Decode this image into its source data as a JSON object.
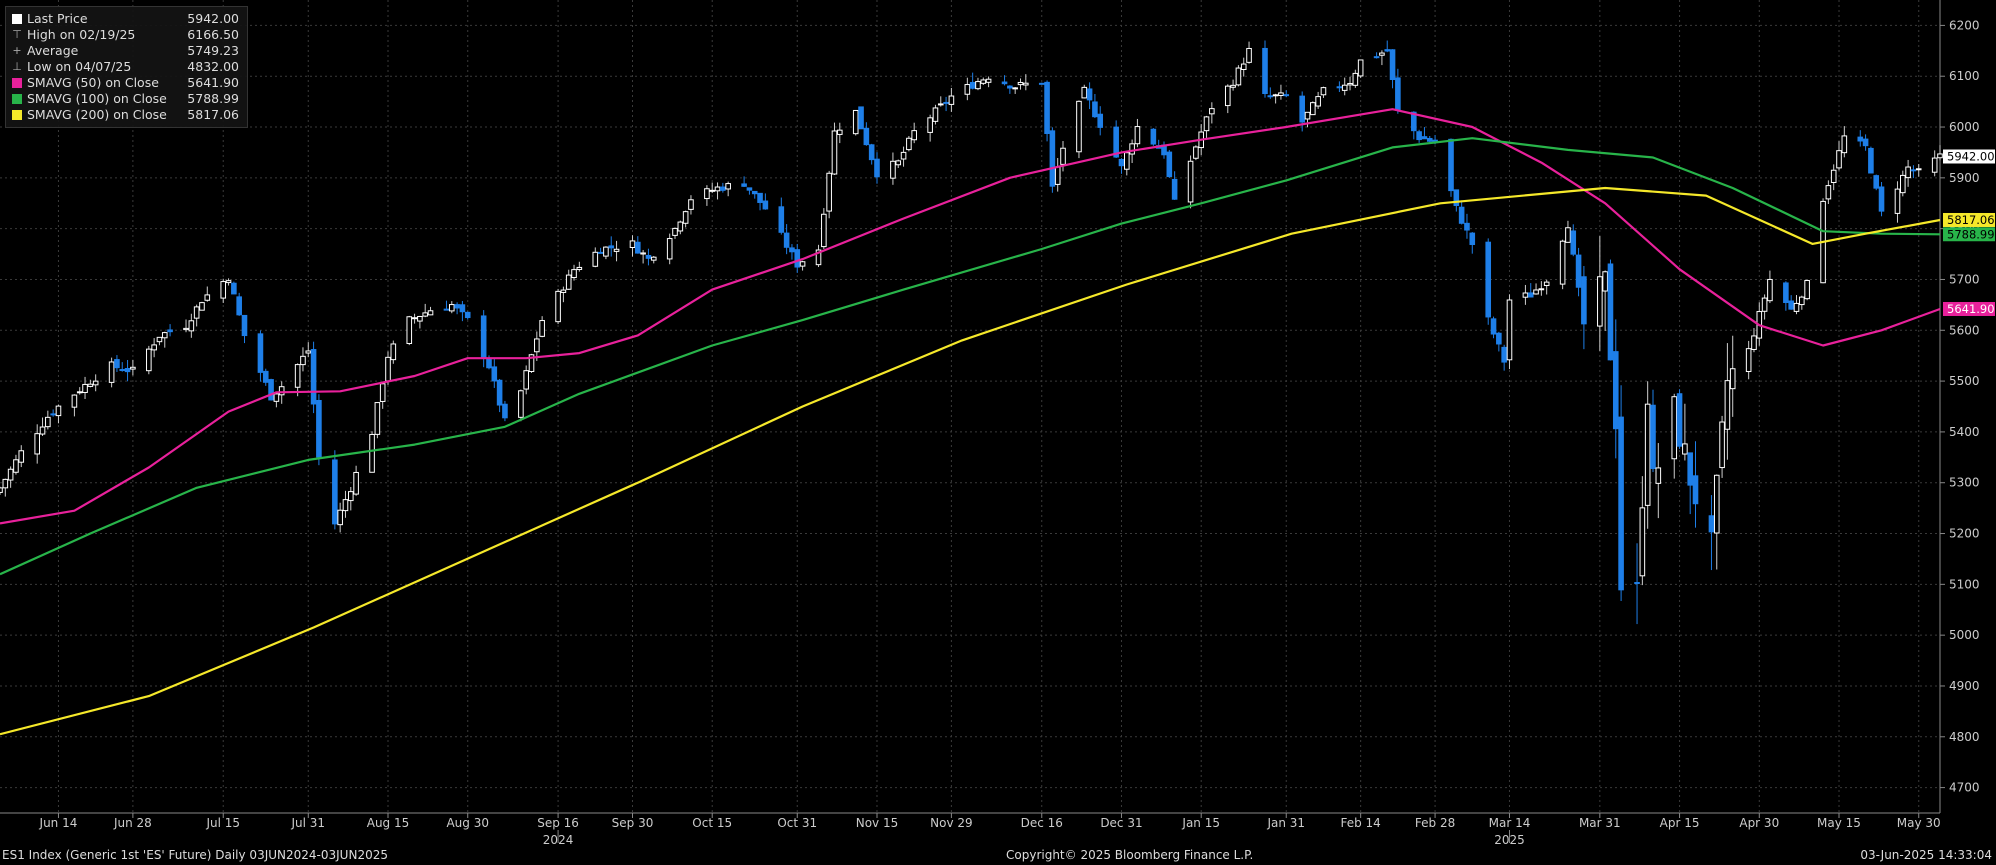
{
  "legend": [
    {
      "glyph": "square",
      "color": "#ffffff",
      "label": "Last Price",
      "value": "5942.00"
    },
    {
      "glyph": "high-icon",
      "label": "High on 02/19/25",
      "value": "6166.50"
    },
    {
      "glyph": "average-icon",
      "label": "Average",
      "value": "5749.23"
    },
    {
      "glyph": "low-icon",
      "label": "Low on 04/07/25",
      "value": "4832.00"
    },
    {
      "glyph": "square",
      "color": "#e8219b",
      "label": "SMAVG (50)  on Close",
      "value": "5641.90"
    },
    {
      "glyph": "square",
      "color": "#28b44a",
      "label": "SMAVG (100)  on Close",
      "value": "5788.99"
    },
    {
      "glyph": "square",
      "color": "#f5e82a",
      "label": "SMAVG (200)  on Close",
      "value": "5817.06"
    }
  ],
  "colors": {
    "background": "#000000",
    "grid": "#3a3a3a",
    "up_candle": "#ffffff",
    "down_candle": "#1e7fe8",
    "sma50": "#e8219b",
    "sma100": "#28b44a",
    "sma200": "#f5e82a"
  },
  "footer": {
    "left": "ES1 Index (Generic 1st 'ES' Future)  Daily 03JUN2024-03JUN2025",
    "center": "Copyright© 2025 Bloomberg Finance L.P.",
    "right": "03-Jun-2025 14:33:04"
  },
  "chart_data": {
    "type": "candlestick",
    "title": "",
    "xlabel": "",
    "ylabel": "",
    "ylim": [
      4650,
      6250
    ],
    "yticks": [
      4700,
      4800,
      4900,
      5000,
      5100,
      5200,
      5300,
      5400,
      5500,
      5600,
      5700,
      5800,
      5900,
      6000,
      6100,
      6200
    ],
    "x_axis": {
      "start": "2024-06-03",
      "end": "2025-06-03",
      "tick_labels": [
        {
          "date": "2024-06-14",
          "label": "Jun 14"
        },
        {
          "date": "2024-06-28",
          "label": "Jun 28"
        },
        {
          "date": "2024-07-15",
          "label": "Jul 15"
        },
        {
          "date": "2024-07-31",
          "label": "Jul 31"
        },
        {
          "date": "2024-08-15",
          "label": "Aug 15"
        },
        {
          "date": "2024-08-30",
          "label": "Aug 30"
        },
        {
          "date": "2024-09-16",
          "label": "Sep 16"
        },
        {
          "date": "2024-09-30",
          "label": "Sep 30"
        },
        {
          "date": "2024-10-15",
          "label": "Oct 15"
        },
        {
          "date": "2024-10-31",
          "label": "Oct 31"
        },
        {
          "date": "2024-11-15",
          "label": "Nov 15"
        },
        {
          "date": "2024-11-29",
          "label": "Nov 29"
        },
        {
          "date": "2024-12-16",
          "label": "Dec 16"
        },
        {
          "date": "2024-12-31",
          "label": "Dec 31"
        },
        {
          "date": "2025-01-15",
          "label": "Jan 15"
        },
        {
          "date": "2025-01-31",
          "label": "Jan 31"
        },
        {
          "date": "2025-02-14",
          "label": "Feb 14"
        },
        {
          "date": "2025-02-28",
          "label": "Feb 28"
        },
        {
          "date": "2025-03-14",
          "label": "Mar 14"
        },
        {
          "date": "2025-03-31",
          "label": "Mar 31"
        },
        {
          "date": "2025-04-15",
          "label": "Apr 15"
        },
        {
          "date": "2025-04-30",
          "label": "Apr 30"
        },
        {
          "date": "2025-05-15",
          "label": "May 15"
        },
        {
          "date": "2025-05-30",
          "label": "May 30"
        }
      ],
      "year_labels": [
        {
          "date": "2024-09-16",
          "label": "2024"
        },
        {
          "date": "2025-03-14",
          "label": "2025"
        }
      ]
    },
    "price_anchors": [
      [
        "2024-06-03",
        5290
      ],
      [
        "2024-06-07",
        5360
      ],
      [
        "2024-06-12",
        5430
      ],
      [
        "2024-06-14",
        5450
      ],
      [
        "2024-06-20",
        5500
      ],
      [
        "2024-06-24",
        5530
      ],
      [
        "2024-06-28",
        5520
      ],
      [
        "2024-07-03",
        5590
      ],
      [
        "2024-07-08",
        5610
      ],
      [
        "2024-07-11",
        5660
      ],
      [
        "2024-07-16",
        5705
      ],
      [
        "2024-07-19",
        5590
      ],
      [
        "2024-07-24",
        5470
      ],
      [
        "2024-07-26",
        5490
      ],
      [
        "2024-07-31",
        5560
      ],
      [
        "2024-08-02",
        5350
      ],
      [
        "2024-08-05",
        5220
      ],
      [
        "2024-08-08",
        5290
      ],
      [
        "2024-08-12",
        5400
      ],
      [
        "2024-08-15",
        5550
      ],
      [
        "2024-08-19",
        5620
      ],
      [
        "2024-08-23",
        5640
      ],
      [
        "2024-08-27",
        5650
      ],
      [
        "2024-08-30",
        5620
      ],
      [
        "2024-09-03",
        5530
      ],
      [
        "2024-09-06",
        5420
      ],
      [
        "2024-09-09",
        5480
      ],
      [
        "2024-09-13",
        5620
      ],
      [
        "2024-09-19",
        5720
      ],
      [
        "2024-09-24",
        5760
      ],
      [
        "2024-09-30",
        5770
      ],
      [
        "2024-10-03",
        5740
      ],
      [
        "2024-10-08",
        5800
      ],
      [
        "2024-10-11",
        5860
      ],
      [
        "2024-10-16",
        5880
      ],
      [
        "2024-10-21",
        5890
      ],
      [
        "2024-10-25",
        5840
      ],
      [
        "2024-10-31",
        5730
      ],
      [
        "2024-11-04",
        5760
      ],
      [
        "2024-11-07",
        5990
      ],
      [
        "2024-11-11",
        6030
      ],
      [
        "2024-11-15",
        5910
      ],
      [
        "2024-11-19",
        5930
      ],
      [
        "2024-11-22",
        5990
      ],
      [
        "2024-11-27",
        6040
      ],
      [
        "2024-11-29",
        6060
      ],
      [
        "2024-12-04",
        6090
      ],
      [
        "2024-12-06",
        6100
      ],
      [
        "2024-12-11",
        6080
      ],
      [
        "2024-12-16",
        6090
      ],
      [
        "2024-12-18",
        5880
      ],
      [
        "2024-12-20",
        5960
      ],
      [
        "2024-12-24",
        6070
      ],
      [
        "2024-12-31",
        5920
      ],
      [
        "2025-01-03",
        6000
      ],
      [
        "2025-01-08",
        5950
      ],
      [
        "2025-01-10",
        5850
      ],
      [
        "2025-01-15",
        5990
      ],
      [
        "2025-01-17",
        6040
      ],
      [
        "2025-01-21",
        6090
      ],
      [
        "2025-01-24",
        6150
      ],
      [
        "2025-01-27",
        6060
      ],
      [
        "2025-01-31",
        6060
      ],
      [
        "2025-02-03",
        6010
      ],
      [
        "2025-02-07",
        6070
      ],
      [
        "2025-02-12",
        6090
      ],
      [
        "2025-02-14",
        6130
      ],
      [
        "2025-02-19",
        6150
      ],
      [
        "2025-02-21",
        6030
      ],
      [
        "2025-02-25",
        5980
      ],
      [
        "2025-02-28",
        5970
      ],
      [
        "2025-03-04",
        5840
      ],
      [
        "2025-03-07",
        5770
      ],
      [
        "2025-03-10",
        5620
      ],
      [
        "2025-03-13",
        5540
      ],
      [
        "2025-03-14",
        5660
      ],
      [
        "2025-03-18",
        5670
      ],
      [
        "2025-03-21",
        5700
      ],
      [
        "2025-03-25",
        5810
      ],
      [
        "2025-03-28",
        5610
      ],
      [
        "2025-04-01",
        5690
      ],
      [
        "2025-04-03",
        5430
      ],
      [
        "2025-04-04",
        5100
      ],
      [
        "2025-04-07",
        5080
      ],
      [
        "2025-04-09",
        5480
      ],
      [
        "2025-04-10",
        5300
      ],
      [
        "2025-04-14",
        5440
      ],
      [
        "2025-04-17",
        5310
      ],
      [
        "2025-04-21",
        5170
      ],
      [
        "2025-04-24",
        5500
      ],
      [
        "2025-04-28",
        5560
      ],
      [
        "2025-05-02",
        5700
      ],
      [
        "2025-05-06",
        5640
      ],
      [
        "2025-05-09",
        5690
      ],
      [
        "2025-05-12",
        5860
      ],
      [
        "2025-05-16",
        5980
      ],
      [
        "2025-05-20",
        5960
      ],
      [
        "2025-05-23",
        5830
      ],
      [
        "2025-05-28",
        5920
      ],
      [
        "2025-05-30",
        5910
      ],
      [
        "2025-06-03",
        5942
      ]
    ],
    "series": [
      {
        "name": "SMAVG (50)  on Close",
        "color": "#e8219b",
        "anchors": [
          [
            "2024-06-03",
            5220
          ],
          [
            "2024-06-17",
            5245
          ],
          [
            "2024-07-01",
            5330
          ],
          [
            "2024-07-16",
            5440
          ],
          [
            "2024-07-25",
            5478
          ],
          [
            "2024-08-06",
            5480
          ],
          [
            "2024-08-20",
            5510
          ],
          [
            "2024-08-30",
            5545
          ],
          [
            "2024-09-10",
            5545
          ],
          [
            "2024-09-20",
            5555
          ],
          [
            "2024-10-01",
            5590
          ],
          [
            "2024-10-15",
            5680
          ],
          [
            "2024-11-01",
            5740
          ],
          [
            "2024-11-20",
            5820
          ],
          [
            "2024-12-10",
            5900
          ],
          [
            "2024-12-31",
            5950
          ],
          [
            "2025-01-15",
            5975
          ],
          [
            "2025-01-31",
            6000
          ],
          [
            "2025-02-20",
            6035
          ],
          [
            "2025-03-07",
            6000
          ],
          [
            "2025-03-20",
            5930
          ],
          [
            "2025-04-01",
            5850
          ],
          [
            "2025-04-15",
            5720
          ],
          [
            "2025-04-30",
            5610
          ],
          [
            "2025-05-12",
            5570
          ],
          [
            "2025-05-23",
            5600
          ],
          [
            "2025-06-03",
            5641.9
          ]
        ]
      },
      {
        "name": "SMAVG (100)  on Close",
        "color": "#28b44a",
        "anchors": [
          [
            "2024-06-03",
            5120
          ],
          [
            "2024-06-20",
            5200
          ],
          [
            "2024-07-10",
            5290
          ],
          [
            "2024-07-31",
            5345
          ],
          [
            "2024-08-20",
            5375
          ],
          [
            "2024-09-06",
            5410
          ],
          [
            "2024-09-20",
            5475
          ],
          [
            "2024-10-15",
            5570
          ],
          [
            "2024-11-01",
            5620
          ],
          [
            "2024-11-20",
            5680
          ],
          [
            "2024-12-16",
            5760
          ],
          [
            "2024-12-31",
            5810
          ],
          [
            "2025-01-15",
            5850
          ],
          [
            "2025-01-31",
            5895
          ],
          [
            "2025-02-20",
            5960
          ],
          [
            "2025-03-07",
            5978
          ],
          [
            "2025-03-25",
            5955
          ],
          [
            "2025-04-10",
            5940
          ],
          [
            "2025-04-25",
            5880
          ],
          [
            "2025-05-12",
            5795
          ],
          [
            "2025-05-23",
            5790
          ],
          [
            "2025-06-03",
            5788.99
          ]
        ]
      },
      {
        "name": "SMAVG (200)  on Close",
        "color": "#f5e82a",
        "anchors": [
          [
            "2024-06-03",
            4805
          ],
          [
            "2024-07-01",
            4880
          ],
          [
            "2024-08-01",
            5015
          ],
          [
            "2024-09-01",
            5160
          ],
          [
            "2024-10-01",
            5300
          ],
          [
            "2024-11-01",
            5450
          ],
          [
            "2024-12-01",
            5580
          ],
          [
            "2025-01-01",
            5690
          ],
          [
            "2025-02-01",
            5790
          ],
          [
            "2025-03-01",
            5850
          ],
          [
            "2025-04-01",
            5880
          ],
          [
            "2025-04-20",
            5865
          ],
          [
            "2025-05-10",
            5770
          ],
          [
            "2025-05-20",
            5790
          ],
          [
            "2025-06-03",
            5817.06
          ]
        ]
      }
    ],
    "y_axis_tags": [
      {
        "value": 5942.0,
        "label": "5942.00",
        "bg": "#ffffff",
        "fg": "#000000"
      },
      {
        "value": 5817.06,
        "label": "5817.06",
        "bg": "#f5e82a",
        "fg": "#000000"
      },
      {
        "value": 5788.99,
        "label": "5788.99",
        "bg": "#28b44a",
        "fg": "#000000"
      },
      {
        "value": 5641.9,
        "label": "5641.90",
        "bg": "#e8219b",
        "fg": "#ffffff"
      }
    ]
  }
}
